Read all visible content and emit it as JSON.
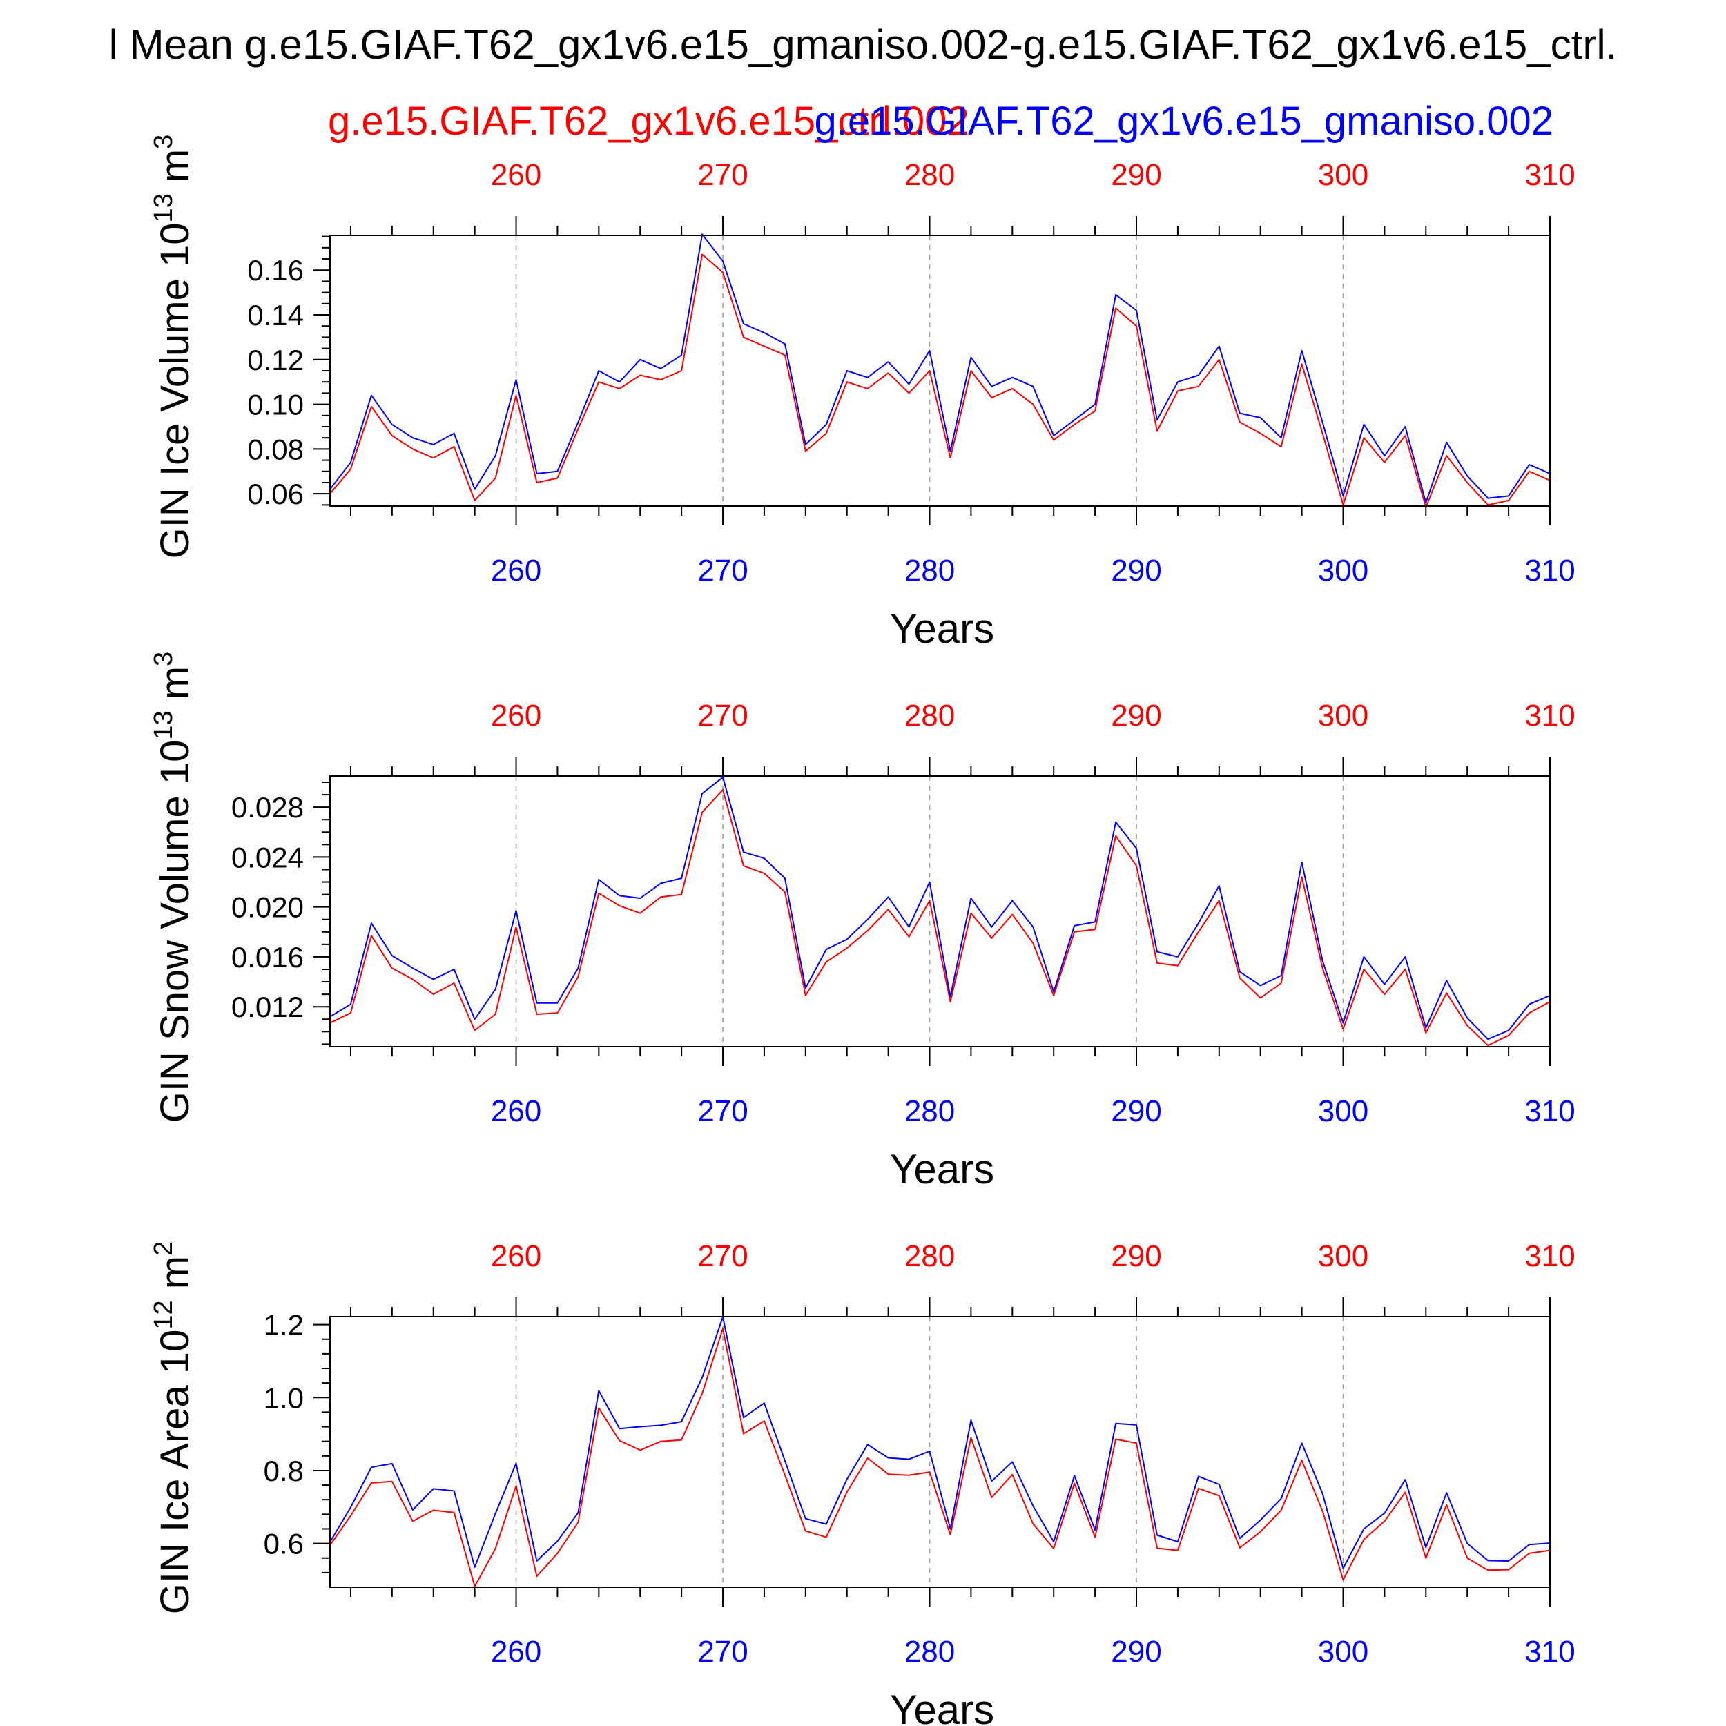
{
  "title": "l Mean g.e15.GIAF.T62_gx1v6.e15_gmaniso.002-g.e15.GIAF.T62_gx1v6.e15_ctrl.",
  "case_labels": {
    "red": "g.e15.GIAF.T62_gx1v6.e15_ctrl.002",
    "blue": "g.e15.GIAF.T62_gx1v6.e15_gmaniso.002"
  },
  "colors": {
    "red": "#ff0000",
    "blue": "#0000ff",
    "axis": "#000000",
    "grid": "#999999"
  },
  "chart_data": [
    {
      "type": "line",
      "ylabel_main": "GIN Ice Volume 10",
      "ylabel_exp": "13",
      "ylabel_unit": " m",
      "ylabel_unit_exp": "3",
      "xlabel": "Years",
      "xlim": [
        251,
        310
      ],
      "ylim": [
        0.0545,
        0.1755
      ],
      "xticks": [
        260,
        270,
        280,
        290,
        300,
        310
      ],
      "yticks": [
        0.06,
        0.08,
        0.1,
        0.12,
        0.14,
        0.16
      ],
      "ytick_labels": [
        "0.06",
        "0.08",
        "0.10",
        "0.12",
        "0.14",
        "0.16"
      ],
      "y_minor_step": 0.005,
      "grid_x": true,
      "x": [
        251,
        252,
        253,
        254,
        255,
        256,
        257,
        258,
        259,
        260,
        261,
        262,
        263,
        264,
        265,
        266,
        267,
        268,
        269,
        270,
        271,
        272,
        273,
        274,
        275,
        276,
        277,
        278,
        279,
        280,
        281,
        282,
        283,
        284,
        285,
        286,
        287,
        288,
        289,
        290,
        291,
        292,
        293,
        294,
        295,
        296,
        297,
        298,
        299,
        300,
        301,
        302,
        303,
        304,
        305,
        306,
        307,
        308,
        309,
        310
      ],
      "series": [
        {
          "name": "g.e15.GIAF.T62_gx1v6.e15_ctrl.002",
          "color": "red",
          "values": [
            0.06,
            0.071,
            0.099,
            0.086,
            0.08,
            0.076,
            0.081,
            0.057,
            0.067,
            0.104,
            0.065,
            0.067,
            0.089,
            0.11,
            0.107,
            0.113,
            0.111,
            0.115,
            0.167,
            0.159,
            0.13,
            0.126,
            0.122,
            0.079,
            0.087,
            0.11,
            0.107,
            0.114,
            0.105,
            0.115,
            0.076,
            0.115,
            0.103,
            0.107,
            0.1,
            0.084,
            0.091,
            0.097,
            0.143,
            0.135,
            0.088,
            0.106,
            0.108,
            0.12,
            0.092,
            0.087,
            0.081,
            0.118,
            0.087,
            0.055,
            0.085,
            0.074,
            0.086,
            0.054,
            0.077,
            0.065,
            0.055,
            0.057,
            0.07,
            0.066
          ]
        },
        {
          "name": "g.e15.GIAF.T62_gx1v6.e15_gmaniso.002",
          "color": "blue",
          "values": [
            0.062,
            0.074,
            0.104,
            0.091,
            0.085,
            0.082,
            0.087,
            0.062,
            0.077,
            0.111,
            0.069,
            0.07,
            0.092,
            0.115,
            0.11,
            0.12,
            0.116,
            0.122,
            0.176,
            0.164,
            0.136,
            0.132,
            0.127,
            0.082,
            0.091,
            0.115,
            0.112,
            0.119,
            0.109,
            0.124,
            0.079,
            0.121,
            0.108,
            0.112,
            0.108,
            0.086,
            0.093,
            0.1,
            0.149,
            0.142,
            0.093,
            0.11,
            0.113,
            0.126,
            0.096,
            0.094,
            0.085,
            0.124,
            0.092,
            0.059,
            0.091,
            0.077,
            0.09,
            0.056,
            0.083,
            0.068,
            0.058,
            0.059,
            0.073,
            0.069
          ]
        }
      ]
    },
    {
      "type": "line",
      "ylabel_main": "GIN Snow Volume 10",
      "ylabel_exp": "13",
      "ylabel_unit": " m",
      "ylabel_unit_exp": "3",
      "xlabel": "Years",
      "xlim": [
        251,
        310
      ],
      "ylim": [
        0.0088,
        0.0305
      ],
      "xticks": [
        260,
        270,
        280,
        290,
        300,
        310
      ],
      "yticks": [
        0.012,
        0.016,
        0.02,
        0.024,
        0.028
      ],
      "ytick_labels": [
        "0.012",
        "0.016",
        "0.020",
        "0.024",
        "0.028"
      ],
      "y_minor_step": 0.001,
      "grid_x": true,
      "x": [
        251,
        252,
        253,
        254,
        255,
        256,
        257,
        258,
        259,
        260,
        261,
        262,
        263,
        264,
        265,
        266,
        267,
        268,
        269,
        270,
        271,
        272,
        273,
        274,
        275,
        276,
        277,
        278,
        279,
        280,
        281,
        282,
        283,
        284,
        285,
        286,
        287,
        288,
        289,
        290,
        291,
        292,
        293,
        294,
        295,
        296,
        297,
        298,
        299,
        300,
        301,
        302,
        303,
        304,
        305,
        306,
        307,
        308,
        309,
        310
      ],
      "series": [
        {
          "name": "g.e15.GIAF.T62_gx1v6.e15_ctrl.002",
          "color": "red",
          "values": [
            0.0107,
            0.0115,
            0.0177,
            0.0151,
            0.0142,
            0.013,
            0.0139,
            0.0101,
            0.0114,
            0.0184,
            0.0114,
            0.0115,
            0.0144,
            0.0211,
            0.0201,
            0.0195,
            0.0208,
            0.021,
            0.0276,
            0.0294,
            0.0233,
            0.0227,
            0.0212,
            0.0129,
            0.0156,
            0.0167,
            0.0181,
            0.0198,
            0.0176,
            0.0205,
            0.0124,
            0.0195,
            0.0175,
            0.0194,
            0.0171,
            0.0129,
            0.018,
            0.0182,
            0.0257,
            0.0233,
            0.0155,
            0.0153,
            0.018,
            0.0205,
            0.0143,
            0.0127,
            0.0139,
            0.0224,
            0.0151,
            0.0102,
            0.015,
            0.013,
            0.015,
            0.0099,
            0.0131,
            0.0105,
            0.0089,
            0.0097,
            0.0115,
            0.0124
          ]
        },
        {
          "name": "g.e15.GIAF.T62_gx1v6.e15_gmaniso.002",
          "color": "blue",
          "values": [
            0.0112,
            0.0122,
            0.0187,
            0.0161,
            0.0151,
            0.0142,
            0.015,
            0.011,
            0.0134,
            0.0197,
            0.0123,
            0.0123,
            0.0151,
            0.0222,
            0.0209,
            0.0207,
            0.0219,
            0.0223,
            0.0291,
            0.0304,
            0.0244,
            0.0239,
            0.0223,
            0.0135,
            0.0166,
            0.0174,
            0.019,
            0.0208,
            0.0184,
            0.022,
            0.0128,
            0.0207,
            0.0184,
            0.0205,
            0.0184,
            0.0132,
            0.0185,
            0.0188,
            0.0268,
            0.0247,
            0.0164,
            0.016,
            0.0187,
            0.0217,
            0.0148,
            0.0137,
            0.0145,
            0.0236,
            0.0157,
            0.0107,
            0.016,
            0.0138,
            0.016,
            0.0103,
            0.0141,
            0.0111,
            0.0094,
            0.0101,
            0.0122,
            0.0129
          ]
        }
      ]
    },
    {
      "type": "line",
      "ylabel_main": "GIN Ice Area 10",
      "ylabel_exp": "12",
      "ylabel_unit": " m",
      "ylabel_unit_exp": "2",
      "xlabel": "Years",
      "xlim": [
        251,
        310
      ],
      "ylim": [
        0.48,
        1.222
      ],
      "xticks": [
        260,
        270,
        280,
        290,
        300,
        310
      ],
      "yticks": [
        0.6,
        0.8,
        1.0,
        1.2
      ],
      "ytick_labels": [
        "0.6",
        "0.8",
        "1.0",
        "1.2"
      ],
      "y_minor_step": 0.04,
      "grid_x": true,
      "x": [
        251,
        252,
        253,
        254,
        255,
        256,
        257,
        258,
        259,
        260,
        261,
        262,
        263,
        264,
        265,
        266,
        267,
        268,
        269,
        270,
        271,
        272,
        273,
        274,
        275,
        276,
        277,
        278,
        279,
        280,
        281,
        282,
        283,
        284,
        285,
        286,
        287,
        288,
        289,
        290,
        291,
        292,
        293,
        294,
        295,
        296,
        297,
        298,
        299,
        300,
        301,
        302,
        303,
        304,
        305,
        306,
        307,
        308,
        309,
        310
      ],
      "series": [
        {
          "name": "g.e15.GIAF.T62_gx1v6.e15_ctrl.002",
          "color": "red",
          "values": [
            0.595,
            0.676,
            0.766,
            0.77,
            0.661,
            0.691,
            0.685,
            0.482,
            0.586,
            0.758,
            0.51,
            0.573,
            0.658,
            0.971,
            0.882,
            0.856,
            0.88,
            0.884,
            1.011,
            1.189,
            0.901,
            0.936,
            0.788,
            0.634,
            0.617,
            0.741,
            0.834,
            0.79,
            0.787,
            0.796,
            0.624,
            0.89,
            0.726,
            0.789,
            0.654,
            0.586,
            0.765,
            0.617,
            0.886,
            0.875,
            0.587,
            0.581,
            0.751,
            0.731,
            0.588,
            0.632,
            0.691,
            0.828,
            0.689,
            0.5,
            0.611,
            0.661,
            0.74,
            0.56,
            0.706,
            0.56,
            0.527,
            0.528,
            0.573,
            0.581
          ]
        },
        {
          "name": "g.e15.GIAF.T62_gx1v6.e15_gmaniso.002",
          "color": "blue",
          "values": [
            0.604,
            0.699,
            0.809,
            0.819,
            0.692,
            0.75,
            0.744,
            0.535,
            0.682,
            0.82,
            0.552,
            0.606,
            0.684,
            1.019,
            0.915,
            0.92,
            0.924,
            0.934,
            1.055,
            1.221,
            0.945,
            0.985,
            0.827,
            0.668,
            0.653,
            0.776,
            0.871,
            0.835,
            0.831,
            0.853,
            0.64,
            0.938,
            0.771,
            0.824,
            0.703,
            0.605,
            0.786,
            0.637,
            0.929,
            0.925,
            0.623,
            0.605,
            0.784,
            0.762,
            0.614,
            0.664,
            0.723,
            0.875,
            0.737,
            0.532,
            0.64,
            0.683,
            0.775,
            0.589,
            0.739,
            0.6,
            0.553,
            0.552,
            0.597,
            0.601
          ]
        }
      ]
    }
  ]
}
